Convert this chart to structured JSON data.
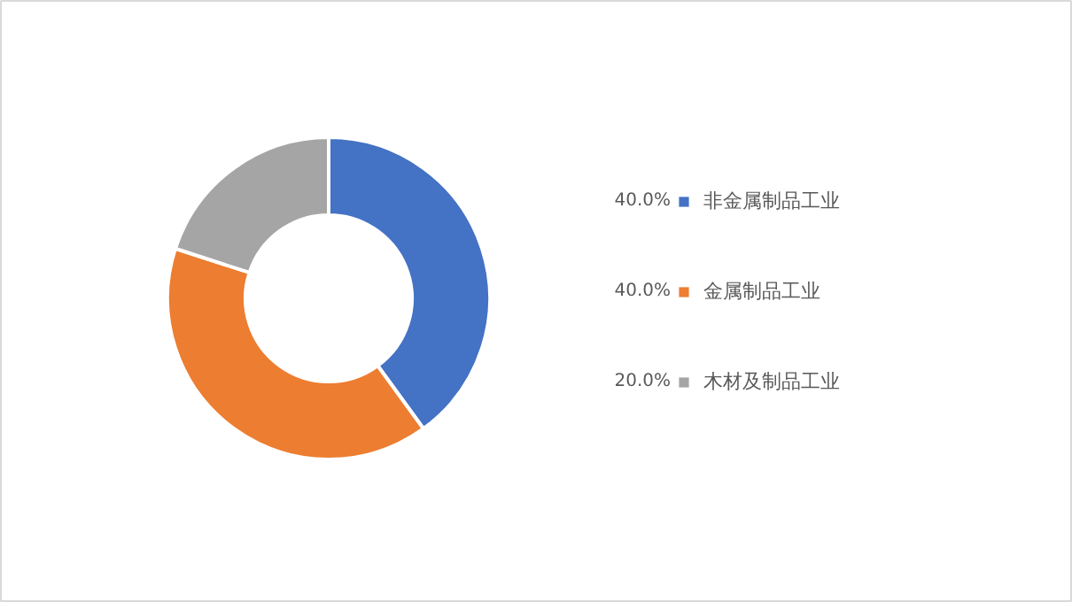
{
  "chart_data": {
    "type": "donut",
    "categories": [
      "非金属制品工业",
      "金属制品工业",
      "木材及制品工业"
    ],
    "values": [
      40,
      40,
      20
    ],
    "colors": [
      "#4472c4",
      "#ed7d31",
      "#a5a5a5"
    ],
    "value_labels": [
      "40.0%",
      "40.0%",
      "20.0%"
    ],
    "legend": "right"
  }
}
